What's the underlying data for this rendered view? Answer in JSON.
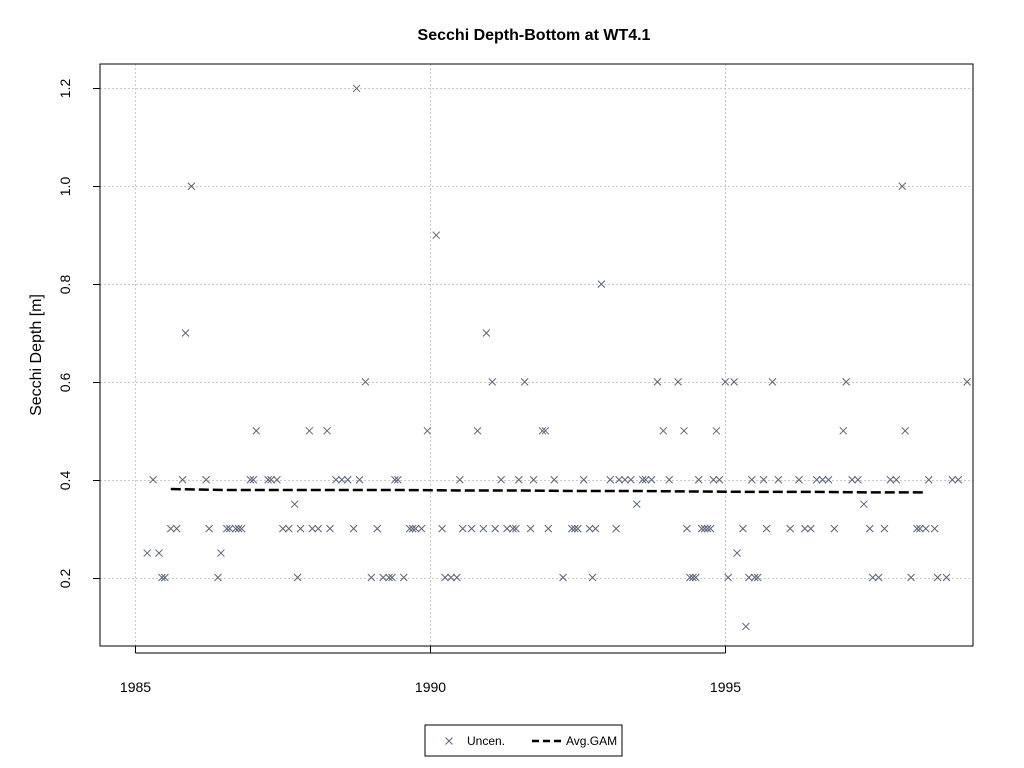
{
  "chart_data": {
    "type": "scatter",
    "title": "Secchi Depth-Bottom at WT4.1",
    "xlabel": "",
    "ylabel": "Secchi Depth [m]",
    "xlim": [
      1984.4,
      1999.2
    ],
    "ylim": [
      0.06,
      1.25
    ],
    "x_ticks": [
      1985,
      1990,
      1995
    ],
    "y_ticks": [
      0.2,
      0.4,
      0.6,
      0.8,
      1.0,
      1.2
    ],
    "x_tick_labels": [
      "1985",
      "1990",
      "1995"
    ],
    "y_tick_labels": [
      "0.2",
      "0.4",
      "0.6",
      "0.8",
      "1.0",
      "1.2"
    ],
    "grid": true,
    "legend_position": "bottom-center",
    "legend": {
      "uncen_label": "Uncen.",
      "gam_label": "Avg.GAM"
    },
    "colors": {
      "points": "#5a6478",
      "gam_line": "#000000",
      "grid": "#c8c8c8"
    },
    "series": [
      {
        "name": "Uncen.",
        "type": "scatter",
        "x": [
          1985.2,
          1985.3,
          1985.4,
          1985.45,
          1985.5,
          1985.6,
          1985.7,
          1985.8,
          1985.85,
          1985.95,
          1986.2,
          1986.25,
          1986.4,
          1986.45,
          1986.55,
          1986.6,
          1986.7,
          1986.75,
          1986.8,
          1986.95,
          1987.0,
          1987.05,
          1987.25,
          1987.3,
          1987.4,
          1987.5,
          1987.6,
          1987.7,
          1987.75,
          1987.8,
          1987.95,
          1988.0,
          1988.1,
          1988.25,
          1988.3,
          1988.4,
          1988.5,
          1988.6,
          1988.7,
          1988.75,
          1988.8,
          1988.9,
          1989.0,
          1989.1,
          1989.2,
          1989.3,
          1989.35,
          1989.4,
          1989.45,
          1989.55,
          1989.65,
          1989.7,
          1989.75,
          1989.85,
          1989.95,
          1990.1,
          1990.2,
          1990.25,
          1990.35,
          1990.45,
          1990.5,
          1990.55,
          1990.7,
          1990.8,
          1990.9,
          1990.95,
          1991.05,
          1991.1,
          1991.2,
          1991.3,
          1991.4,
          1991.45,
          1991.5,
          1991.6,
          1991.7,
          1991.75,
          1991.9,
          1991.95,
          1992.0,
          1992.1,
          1992.25,
          1992.4,
          1992.45,
          1992.5,
          1992.6,
          1992.7,
          1992.75,
          1992.8,
          1992.9,
          1993.05,
          1993.15,
          1993.2,
          1993.3,
          1993.4,
          1993.5,
          1993.6,
          1993.65,
          1993.75,
          1993.85,
          1993.95,
          1994.05,
          1994.2,
          1994.3,
          1994.35,
          1994.4,
          1994.45,
          1994.5,
          1994.55,
          1994.6,
          1994.65,
          1994.7,
          1994.75,
          1994.8,
          1994.85,
          1994.9,
          1995.0,
          1995.05,
          1995.15,
          1995.2,
          1995.3,
          1995.35,
          1995.4,
          1995.45,
          1995.5,
          1995.55,
          1995.65,
          1995.7,
          1995.8,
          1995.9,
          1996.1,
          1996.25,
          1996.35,
          1996.45,
          1996.55,
          1996.65,
          1996.75,
          1996.85,
          1997.0,
          1997.05,
          1997.15,
          1997.25,
          1997.35,
          1997.45,
          1997.5,
          1997.6,
          1997.7,
          1997.8,
          1997.9,
          1998.0,
          1998.05,
          1998.15,
          1998.25,
          1998.3,
          1998.4,
          1998.45,
          1998.55,
          1998.6,
          1998.75,
          1998.85,
          1998.95,
          1999.1
        ],
        "y": [
          0.25,
          0.4,
          0.25,
          0.2,
          0.2,
          0.3,
          0.3,
          0.4,
          0.7,
          1.0,
          0.4,
          0.3,
          0.2,
          0.25,
          0.3,
          0.3,
          0.3,
          0.3,
          0.3,
          0.4,
          0.4,
          0.5,
          0.4,
          0.4,
          0.4,
          0.3,
          0.3,
          0.35,
          0.2,
          0.3,
          0.5,
          0.3,
          0.3,
          0.5,
          0.3,
          0.4,
          0.4,
          0.4,
          0.3,
          1.2,
          0.4,
          0.6,
          0.2,
          0.3,
          0.2,
          0.2,
          0.2,
          0.4,
          0.4,
          0.2,
          0.3,
          0.3,
          0.3,
          0.3,
          0.5,
          0.9,
          0.3,
          0.2,
          0.2,
          0.2,
          0.4,
          0.3,
          0.3,
          0.5,
          0.3,
          0.7,
          0.6,
          0.3,
          0.4,
          0.3,
          0.3,
          0.3,
          0.4,
          0.6,
          0.3,
          0.4,
          0.5,
          0.5,
          0.3,
          0.4,
          0.2,
          0.3,
          0.3,
          0.3,
          0.4,
          0.3,
          0.2,
          0.3,
          0.8,
          0.4,
          0.3,
          0.4,
          0.4,
          0.4,
          0.35,
          0.4,
          0.4,
          0.4,
          0.6,
          0.5,
          0.4,
          0.6,
          0.5,
          0.3,
          0.2,
          0.2,
          0.2,
          0.4,
          0.3,
          0.3,
          0.3,
          0.3,
          0.4,
          0.5,
          0.4,
          0.6,
          0.2,
          0.6,
          0.25,
          0.3,
          0.1,
          0.2,
          0.4,
          0.2,
          0.2,
          0.4,
          0.3,
          0.6,
          0.4,
          0.3,
          0.4,
          0.3,
          0.3,
          0.4,
          0.4,
          0.4,
          0.3,
          0.5,
          0.6,
          0.4,
          0.4,
          0.35,
          0.3,
          0.2,
          0.2,
          0.3,
          0.4,
          0.4,
          1.0,
          0.5,
          0.2,
          0.3,
          0.3,
          0.3,
          0.4,
          0.3,
          0.2,
          0.2,
          0.4,
          0.4,
          0.6
        ]
      },
      {
        "name": "Avg.GAM",
        "type": "line",
        "x": [
          1985.6,
          1986.5,
          1987.5,
          1988.5,
          1989.5,
          1990.5,
          1991.5,
          1992.5,
          1993.5,
          1994.5,
          1995.5,
          1996.5,
          1997.5,
          1998.4
        ],
        "y": [
          0.381,
          0.379,
          0.379,
          0.379,
          0.379,
          0.378,
          0.378,
          0.377,
          0.377,
          0.376,
          0.375,
          0.375,
          0.374,
          0.374
        ]
      }
    ]
  }
}
